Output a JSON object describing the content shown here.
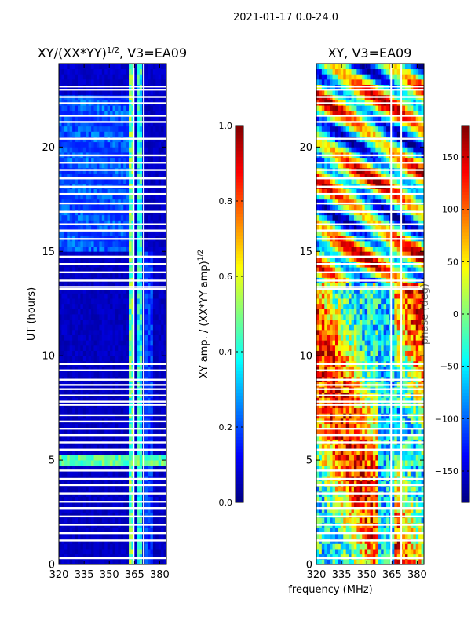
{
  "figure": {
    "suptitle": "2021-01-17 0.0-24.0",
    "xlabel": "frequency (MHz)",
    "colors": {
      "background": "#ffffff",
      "axis": "#000000",
      "gap": "#ffffff"
    }
  },
  "chart_data": [
    {
      "id": "amp",
      "type": "heatmap",
      "title": "XY/(XX*YY)1/2, V3=EA09",
      "title_main": "XY/(XX*YY)",
      "title_sup": "1/2",
      "title_rest": ", V3=EA09",
      "xlabel": "",
      "ylabel": "UT (hours)",
      "xlim": [
        320,
        384
      ],
      "ylim": [
        0,
        24
      ],
      "xticks": [
        320,
        335,
        350,
        365,
        380
      ],
      "yticks": [
        0,
        5,
        10,
        15,
        20
      ],
      "colorbar": {
        "label": "XY amp. / (XX*YY amp)1/2",
        "label_main": "XY amp. / (XX*YY amp)",
        "label_sup": "1/2",
        "vmin": 0.0,
        "vmax": 1.0,
        "ticks": [
          "0.0",
          "0.2",
          "0.4",
          "0.6",
          "0.8",
          "1.0"
        ],
        "tick_values": [
          0.0,
          0.2,
          0.4,
          0.6,
          0.8,
          1.0
        ],
        "colormap": "jet"
      },
      "features": [
        {
          "desc": "bright band",
          "freq_range": [
            361,
            365
          ],
          "level": 0.45
        },
        {
          "desc": "bright band",
          "freq_range": [
            366,
            369
          ],
          "level": 0.4
        },
        {
          "desc": "bright row",
          "time_range": [
            4.8,
            5.3
          ],
          "level": 0.45
        },
        {
          "desc": "background",
          "level": 0.05
        }
      ]
    },
    {
      "id": "phase",
      "type": "heatmap",
      "title": "XY, V3=EA09",
      "xlabel": "",
      "ylabel": "",
      "xlim": [
        320,
        384
      ],
      "ylim": [
        0,
        24
      ],
      "xticks": [
        320,
        335,
        350,
        365,
        380
      ],
      "yticks": [
        0,
        5,
        10,
        15,
        20
      ],
      "colorbar": {
        "label": "phase (deg)",
        "vmin": -180,
        "vmax": 180,
        "ticks": [
          "−150",
          "−100",
          "−50",
          "0",
          "50",
          "100",
          "150"
        ],
        "tick_values": [
          -150,
          -100,
          -50,
          0,
          50,
          100,
          150
        ],
        "colormap": "jet"
      }
    }
  ],
  "flagged_hours": [
    0.3,
    1.15,
    1.5,
    1.9,
    2.3,
    2.7,
    3.0,
    3.4,
    3.8,
    4.1,
    4.5,
    5.5,
    5.85,
    6.2,
    6.5,
    6.85,
    7.15,
    7.65,
    7.8,
    8.1,
    8.4,
    8.6,
    8.85,
    9.3,
    9.6,
    13.2,
    13.3,
    13.6,
    14.0,
    14.4,
    14.75,
    15.6,
    16.0,
    16.3,
    16.9,
    17.3,
    17.75,
    18.1,
    18.5,
    18.9,
    19.25,
    19.6,
    20.4,
    21.2,
    21.5,
    22.1,
    22.4,
    22.75,
    22.9
  ],
  "flagged_freqs": [
    364.5,
    370.5
  ]
}
